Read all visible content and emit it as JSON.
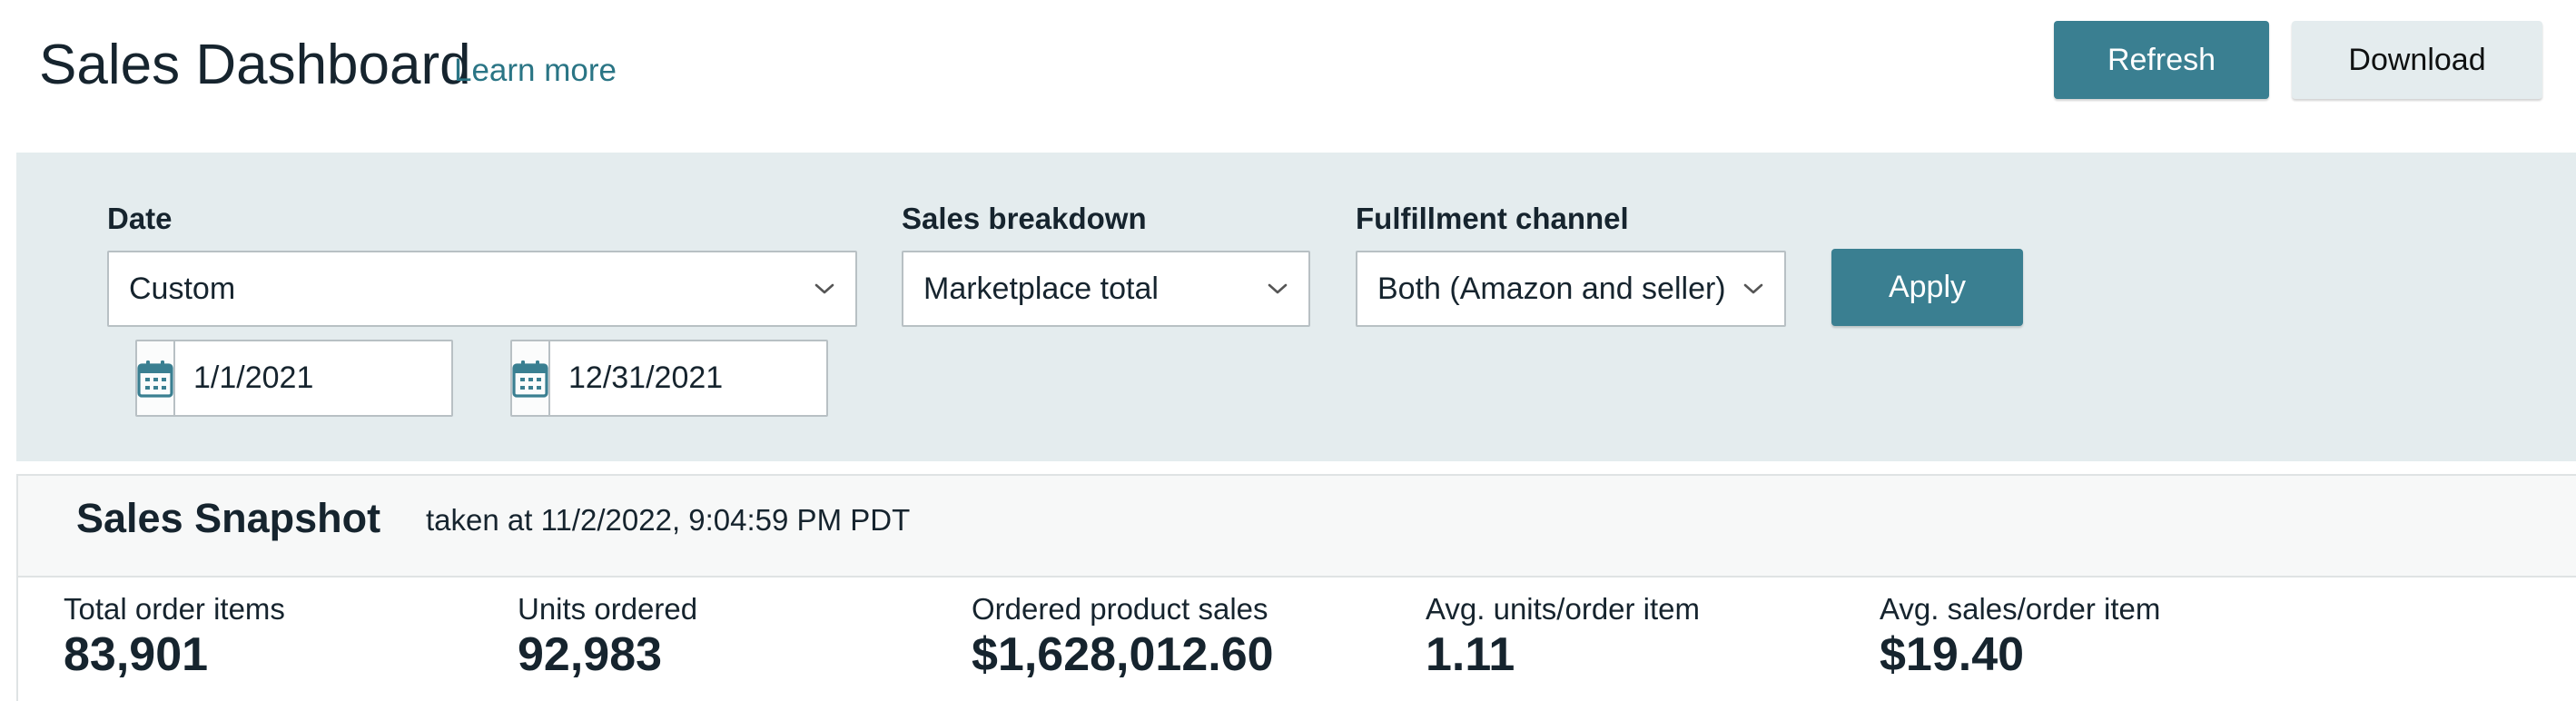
{
  "header": {
    "title": "Sales Dashboard",
    "learn_more": "Learn more",
    "refresh_label": "Refresh",
    "download_label": "Download"
  },
  "filters": {
    "date": {
      "label": "Date",
      "selected": "Custom",
      "start_date": "1/1/2021",
      "end_date": "12/31/2021"
    },
    "sales_breakdown": {
      "label": "Sales breakdown",
      "selected": "Marketplace total"
    },
    "fulfillment_channel": {
      "label": "Fulfillment channel",
      "selected": "Both (Amazon and seller)"
    },
    "apply_label": "Apply"
  },
  "snapshot": {
    "title": "Sales Snapshot",
    "taken_at": "taken at 11/2/2022, 9:04:59 PM PDT",
    "metrics": [
      {
        "label": "Total order items",
        "value": "83,901"
      },
      {
        "label": "Units ordered",
        "value": "92,983"
      },
      {
        "label": "Ordered product sales",
        "value": "$1,628,012.60"
      },
      {
        "label": "Avg. units/order item",
        "value": "1.11"
      },
      {
        "label": "Avg. sales/order item",
        "value": "$19.40"
      }
    ]
  },
  "icons": {
    "calendar": "calendar-icon",
    "chevron": "chevron-down-icon"
  },
  "colors": {
    "accent": "#3a7f91",
    "link": "#2a7585",
    "panel_bg": "#e4ecee",
    "text": "#16242e"
  }
}
